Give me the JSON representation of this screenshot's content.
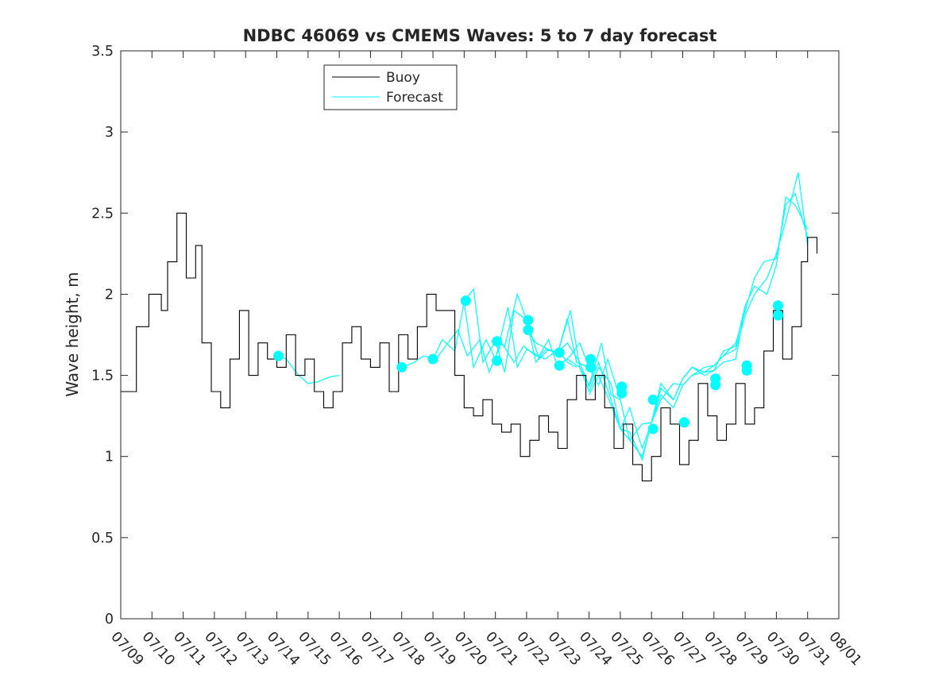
{
  "chart_data": {
    "type": "line",
    "title": "NDBC 46069 vs CMEMS Waves: 5 to 7 day forecast",
    "xlabel": "",
    "ylabel": "Wave height, m",
    "x_range": [
      "07/09",
      "08/01"
    ],
    "ylim": [
      0,
      3.5
    ],
    "yticks": [
      "0",
      "0.5",
      "1",
      "1.5",
      "2",
      "2.5",
      "3",
      "3.5"
    ],
    "xticks": [
      "07/09",
      "07/10",
      "07/11",
      "07/12",
      "07/13",
      "07/14",
      "07/15",
      "07/16",
      "07/17",
      "07/18",
      "07/19",
      "07/20",
      "07/21",
      "07/22",
      "07/23",
      "07/24",
      "07/25",
      "07/26",
      "07/27",
      "07/28",
      "07/29",
      "07/30",
      "07/31",
      "08/01"
    ],
    "grid": false,
    "legend": {
      "position": "top-left",
      "entries": [
        "Buoy",
        "Forecast"
      ]
    },
    "colors": {
      "buoy": "#000000",
      "forecast": "#00ffff"
    },
    "series": [
      {
        "name": "Buoy",
        "color": "#000000",
        "x_days": [
          0,
          0.5,
          0.9,
          1.3,
          1.5,
          1.8,
          2.1,
          2.4,
          2.6,
          2.9,
          3.2,
          3.5,
          3.8,
          4.1,
          4.4,
          4.7,
          5,
          5.3,
          5.6,
          5.9,
          6.2,
          6.5,
          6.8,
          7.1,
          7.4,
          7.7,
          8,
          8.3,
          8.6,
          8.9,
          9.2,
          9.5,
          9.8,
          10.1,
          10.4,
          10.7,
          11,
          11.3,
          11.6,
          11.9,
          12.2,
          12.5,
          12.8,
          13.1,
          13.4,
          13.7,
          14,
          14.3,
          14.6,
          14.9,
          15.2,
          15.5,
          15.8,
          16.1,
          16.4,
          16.7,
          17,
          17.3,
          17.6,
          17.9,
          18.2,
          18.5,
          18.8,
          19.1,
          19.4,
          19.7,
          20,
          20.3,
          20.6,
          20.9,
          21.2,
          21.5,
          21.8,
          22,
          22.3
        ],
        "values": [
          1.4,
          1.8,
          2.0,
          1.9,
          2.2,
          2.5,
          2.1,
          2.3,
          1.7,
          1.4,
          1.3,
          1.6,
          1.9,
          1.5,
          1.7,
          1.6,
          1.55,
          1.75,
          1.5,
          1.6,
          1.4,
          1.3,
          1.4,
          1.7,
          1.8,
          1.6,
          1.55,
          1.7,
          1.4,
          1.75,
          1.6,
          1.8,
          2.0,
          1.9,
          1.9,
          1.5,
          1.3,
          1.25,
          1.35,
          1.2,
          1.15,
          1.2,
          1.0,
          1.1,
          1.25,
          1.15,
          1.05,
          1.35,
          1.5,
          1.35,
          1.5,
          1.3,
          1.05,
          1.2,
          0.95,
          0.85,
          1.0,
          1.3,
          1.2,
          0.95,
          1.1,
          1.45,
          1.25,
          1.1,
          1.2,
          1.45,
          1.2,
          1.3,
          1.65,
          1.9,
          1.6,
          1.8,
          2.2,
          2.35,
          2.25
        ]
      },
      {
        "name": "Forecast",
        "color": "#00ffff",
        "segments": [
          {
            "x_days": [
              5.0,
              5.3,
              5.7,
              6.0,
              6.3,
              6.7,
              7.0
            ],
            "values": [
              1.62,
              1.6,
              1.5,
              1.45,
              1.46,
              1.49,
              1.5
            ]
          },
          {
            "x_days": [
              9.0,
              9.4,
              9.7,
              10.1,
              10.4,
              10.8,
              11.1,
              11.5,
              11.8,
              12.2,
              12.6,
              12.9,
              13.3,
              13.6,
              14.0,
              14.3,
              14.6
            ],
            "values": [
              1.55,
              1.58,
              1.62,
              1.6,
              1.68,
              1.78,
              1.62,
              1.72,
              1.52,
              1.7,
              1.58,
              1.68,
              1.62,
              1.6,
              1.66,
              1.58,
              1.55
            ]
          },
          {
            "x_days": [
              10.0,
              10.3,
              10.7,
              11.0,
              11.3,
              11.7,
              12.0,
              12.4,
              12.7,
              13.0,
              13.4,
              13.7,
              14.0,
              14.4,
              14.7,
              15.0
            ],
            "values": [
              1.6,
              1.72,
              1.65,
              1.95,
              1.55,
              1.72,
              1.6,
              1.92,
              1.55,
              1.66,
              1.62,
              1.72,
              1.55,
              1.62,
              1.7,
              1.55
            ]
          },
          {
            "x_days": [
              11.0,
              11.3,
              11.6,
              12.0,
              12.3,
              12.6,
              13.0,
              13.3,
              13.6,
              14.0,
              14.3,
              14.6,
              15.0,
              15.3,
              15.6,
              16.0
            ],
            "values": [
              1.96,
              2.03,
              1.58,
              1.71,
              1.52,
              1.9,
              1.84,
              1.58,
              1.66,
              1.64,
              1.85,
              1.58,
              1.55,
              1.44,
              1.6,
              1.35
            ]
          },
          {
            "x_days": [
              12.0,
              12.3,
              12.7,
              13.0,
              13.4,
              13.7,
              14.0,
              14.4,
              14.7,
              15.0,
              15.4,
              15.7,
              16.0,
              16.3,
              16.7,
              17.0
            ],
            "values": [
              1.71,
              1.68,
              2.0,
              1.84,
              1.6,
              1.66,
              1.64,
              1.9,
              1.55,
              1.44,
              1.7,
              1.38,
              1.35,
              1.1,
              1.0,
              1.2
            ]
          },
          {
            "x_days": [
              13.0,
              13.3,
              13.7,
              14.0,
              14.3,
              14.7,
              15.0,
              15.3,
              15.7,
              16.0,
              16.3,
              16.7,
              17.0,
              17.3,
              17.7,
              18.0
            ],
            "values": [
              1.78,
              1.7,
              1.66,
              1.64,
              1.7,
              1.58,
              1.43,
              1.58,
              1.35,
              1.17,
              1.3,
              1.05,
              1.21,
              1.42,
              1.35,
              1.48
            ]
          },
          {
            "x_days": [
              14.0,
              14.3,
              14.7,
              15.0,
              15.3,
              15.7,
              16.0,
              16.3,
              16.7,
              17.0,
              17.3,
              17.7,
              18.0,
              18.3,
              18.7,
              19.0
            ],
            "values": [
              1.56,
              1.6,
              1.55,
              1.4,
              1.55,
              1.45,
              1.17,
              1.15,
              0.98,
              1.21,
              1.38,
              1.3,
              1.44,
              1.5,
              1.52,
              1.56
            ]
          },
          {
            "x_days": [
              15.0,
              15.3,
              15.7,
              16.0,
              16.3,
              16.7,
              17.0,
              17.3,
              17.7,
              18.0,
              18.3,
              18.7,
              19.0,
              19.3,
              19.7,
              20.0
            ],
            "values": [
              1.38,
              1.5,
              1.32,
              1.17,
              1.1,
              1.2,
              1.21,
              1.45,
              1.35,
              1.48,
              1.55,
              1.52,
              1.53,
              1.65,
              1.68,
              1.93
            ]
          },
          {
            "x_days": [
              17.0,
              17.3,
              17.7,
              18.0,
              18.3,
              18.7,
              19.0,
              19.3,
              19.7,
              20.0,
              20.3,
              20.7,
              21.0,
              21.3,
              21.7,
              22.0
            ],
            "values": [
              1.21,
              1.35,
              1.45,
              1.44,
              1.5,
              1.55,
              1.56,
              1.62,
              1.66,
              1.87,
              2.0,
              2.1,
              2.25,
              2.45,
              2.75,
              2.3
            ]
          },
          {
            "x_days": [
              18.0,
              18.3,
              18.7,
              19.0,
              19.3,
              19.7,
              20.0,
              20.3,
              20.7,
              21.0,
              21.3,
              21.6,
              22.0
            ],
            "values": [
              1.48,
              1.55,
              1.5,
              1.53,
              1.58,
              1.6,
              1.93,
              2.05,
              2.0,
              2.18,
              2.6,
              2.55,
              2.4
            ]
          },
          {
            "x_days": [
              19.0,
              19.3,
              19.7,
              20.0,
              20.3,
              20.6,
              21.0,
              21.3,
              21.6,
              22.0
            ],
            "values": [
              1.56,
              1.62,
              1.7,
              1.9,
              2.1,
              2.2,
              2.22,
              2.55,
              2.62,
              2.35
            ]
          }
        ]
      }
    ],
    "forecast_markers": {
      "x_days": [
        5.05,
        9.0,
        10.0,
        11.05,
        12.05,
        12.05,
        13.05,
        13.05,
        14.05,
        14.05,
        15.05,
        15.05,
        16.05,
        16.05,
        17.05,
        17.05,
        18.05,
        18.05,
        19.05,
        19.05,
        20.05,
        20.05,
        21.05,
        21.05
      ],
      "values": [
        1.62,
        1.55,
        1.6,
        1.96,
        1.71,
        1.59,
        1.84,
        1.78,
        1.64,
        1.56,
        1.6,
        1.55,
        1.43,
        1.39,
        1.35,
        1.17,
        1.21,
        1.21,
        1.48,
        1.44,
        1.56,
        1.53,
        1.93,
        1.87
      ]
    }
  }
}
